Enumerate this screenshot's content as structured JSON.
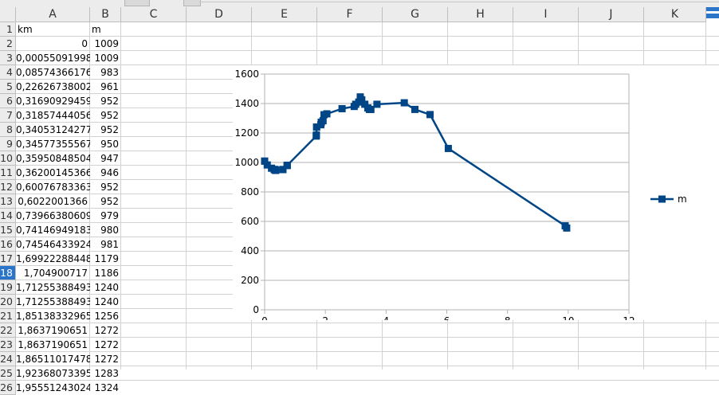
{
  "sheet": {
    "columns": [
      "A",
      "B",
      "C",
      "D",
      "E",
      "F",
      "G",
      "H",
      "I",
      "J",
      "K"
    ],
    "row_numbers": [
      "1",
      "2",
      "3",
      "4",
      "5",
      "6",
      "7",
      "8",
      "9",
      "10",
      "11",
      "12",
      "13",
      "14",
      "15",
      "16",
      "17",
      "18",
      "19",
      "20",
      "21",
      "22",
      "23",
      "24",
      "25",
      "26"
    ],
    "selected_row": "18",
    "header_row": {
      "a": "km",
      "b": "m"
    },
    "rows": [
      {
        "a": "0",
        "b": "1009"
      },
      {
        "a": "0,00055091998",
        "b": "1009"
      },
      {
        "a": "0,08574366176",
        "b": "983"
      },
      {
        "a": "0,22626738002",
        "b": "961"
      },
      {
        "a": "0,31690929459",
        "b": "952"
      },
      {
        "a": "0,31857444056",
        "b": "952"
      },
      {
        "a": "0,34053124277",
        "b": "952"
      },
      {
        "a": "0,34577355567",
        "b": "950"
      },
      {
        "a": "0,35950848504",
        "b": "947"
      },
      {
        "a": "0,36200145366",
        "b": "946"
      },
      {
        "a": "0,60076783363",
        "b": "952"
      },
      {
        "a": "0,6022001366",
        "b": "952"
      },
      {
        "a": "0,73966380609",
        "b": "979"
      },
      {
        "a": "0,74146949183",
        "b": "980"
      },
      {
        "a": "0,74546433924",
        "b": "981"
      },
      {
        "a": "1,69922288448",
        "b": "1179"
      },
      {
        "a": "1,704900717",
        "b": "1186"
      },
      {
        "a": "1,71255388493",
        "b": "1240"
      },
      {
        "a": "1,71255388493",
        "b": "1240"
      },
      {
        "a": "1,85138332965",
        "b": "1256"
      },
      {
        "a": "1,8637190651",
        "b": "1272"
      },
      {
        "a": "1,8637190651",
        "b": "1272"
      },
      {
        "a": "1,86511017478",
        "b": "1272"
      },
      {
        "a": "1,92368073395",
        "b": "1283"
      },
      {
        "a": "1,95551243024",
        "b": "1324"
      }
    ]
  },
  "chart_data": {
    "type": "line",
    "title": "",
    "xlabel": "",
    "ylabel": "",
    "xlim": [
      0,
      12
    ],
    "ylim": [
      0,
      1600
    ],
    "x_ticks": [
      "0",
      "2",
      "4",
      "6",
      "8",
      "10",
      "12"
    ],
    "y_ticks": [
      "0",
      "200",
      "400",
      "600",
      "800",
      "1000",
      "1200",
      "1400",
      "1600"
    ],
    "grid": "horizontal",
    "legend_position": "right",
    "series": [
      {
        "name": "m",
        "color": "#004586",
        "marker": "square",
        "x": [
          0,
          0.00055,
          0.0857,
          0.226,
          0.317,
          0.319,
          0.341,
          0.346,
          0.36,
          0.362,
          0.601,
          0.602,
          0.74,
          0.741,
          0.745,
          1.699,
          1.705,
          1.713,
          1.713,
          1.851,
          1.864,
          1.864,
          1.865,
          1.924,
          1.956,
          2.05,
          2.55,
          2.95,
          3.0,
          3.1,
          3.15,
          3.2,
          3.3,
          3.4,
          3.45,
          3.5,
          3.7,
          4.6,
          4.95,
          5.45,
          6.05,
          9.9,
          9.95
        ],
        "y": [
          1009,
          1009,
          983,
          961,
          952,
          952,
          952,
          950,
          947,
          946,
          952,
          952,
          979,
          980,
          981,
          1179,
          1186,
          1240,
          1240,
          1256,
          1272,
          1272,
          1272,
          1283,
          1324,
          1330,
          1365,
          1380,
          1395,
          1410,
          1445,
          1425,
          1395,
          1370,
          1360,
          1360,
          1395,
          1405,
          1360,
          1325,
          1095,
          570,
          555
        ]
      }
    ]
  }
}
